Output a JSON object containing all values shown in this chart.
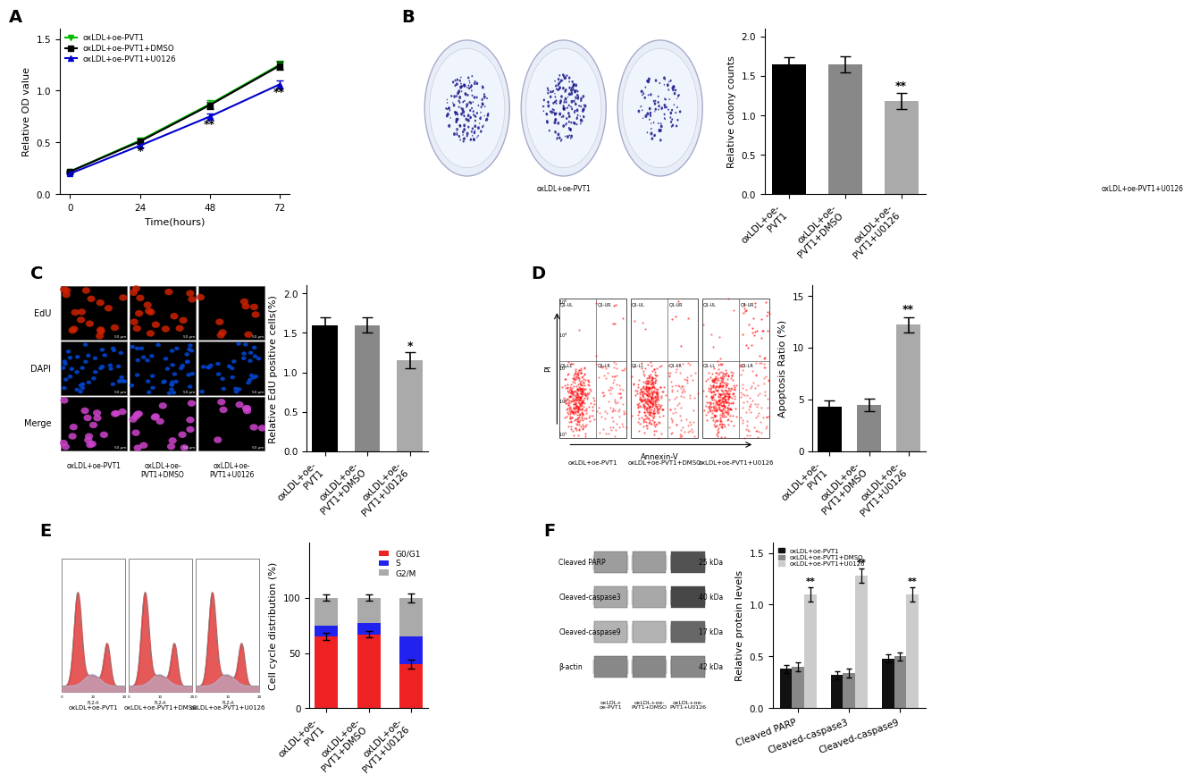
{
  "panel_A": {
    "time_points": [
      0,
      24,
      48,
      72
    ],
    "series": {
      "oxLDL+oe-PVT1": {
        "values": [
          0.22,
          0.52,
          0.87,
          1.25
        ],
        "errors": [
          0.01,
          0.025,
          0.035,
          0.04
        ],
        "color": "#00bb00",
        "marker": "v",
        "linestyle": "-"
      },
      "oxLDL+oe-PVT1+DMSO": {
        "values": [
          0.22,
          0.51,
          0.86,
          1.24
        ],
        "errors": [
          0.01,
          0.025,
          0.035,
          0.04
        ],
        "color": "#000000",
        "marker": "s",
        "linestyle": "-"
      },
      "oxLDL+oe-PVT1+U0126": {
        "values": [
          0.2,
          0.47,
          0.75,
          1.06
        ],
        "errors": [
          0.01,
          0.02,
          0.03,
          0.035
        ],
        "color": "#0000cc",
        "marker": "^",
        "linestyle": "-"
      }
    },
    "xlabel": "Time(hours)",
    "ylabel": "Relative OD value",
    "ylim": [
      0.0,
      1.6
    ],
    "yticks": [
      0.0,
      0.5,
      1.0,
      1.5
    ],
    "ann_24": "*",
    "ann_48": "**",
    "ann_72": "**"
  },
  "panel_B_bar": {
    "categories": [
      "oxLDL+oe-PVT1",
      "oxLDL+oe-PVT1+DMSO",
      "oxLDL+oe-PVT1+U0126"
    ],
    "values": [
      1.65,
      1.65,
      1.18
    ],
    "errors": [
      0.09,
      0.1,
      0.1
    ],
    "colors": [
      "#000000",
      "#888888",
      "#aaaaaa"
    ],
    "ylabel": "Relative colony counts",
    "ylim": [
      0.0,
      2.1
    ],
    "yticks": [
      0.0,
      0.5,
      1.0,
      1.5,
      2.0
    ],
    "ann_idx": 2,
    "ann_text": "**"
  },
  "panel_C_bar": {
    "categories": [
      "oxLDL+oe-PVT1",
      "oxLDL+oe-PVT1+DMSO",
      "oxLDL+oe-PVT1+U0126"
    ],
    "values": [
      1.6,
      1.6,
      1.15
    ],
    "errors": [
      0.1,
      0.1,
      0.1
    ],
    "colors": [
      "#000000",
      "#888888",
      "#aaaaaa"
    ],
    "ylabel": "Relative EdU positive cells(%)",
    "ylim": [
      0.0,
      2.1
    ],
    "yticks": [
      0.0,
      0.5,
      1.0,
      1.5,
      2.0
    ],
    "ann_idx": 2,
    "ann_text": "*"
  },
  "panel_D_bar": {
    "categories": [
      "oxLDL+oe-PVT1",
      "oxLDL+oe-PVT1+DMSO",
      "oxLDL+oe-PVT1+U0126"
    ],
    "values": [
      4.3,
      4.5,
      12.2
    ],
    "errors": [
      0.6,
      0.6,
      0.7
    ],
    "colors": [
      "#000000",
      "#888888",
      "#aaaaaa"
    ],
    "ylabel": "Apoptosis Ratio (%)",
    "ylim": [
      0,
      16
    ],
    "yticks": [
      0,
      5,
      10,
      15
    ],
    "ann_idx": 2,
    "ann_text": "**"
  },
  "panel_E_bar": {
    "categories": [
      "oxLDL+oe-PVT1",
      "oxLDL+oe-PVT1+DMSO",
      "oxLDL+oe-PVT1+U0126"
    ],
    "G0G1": [
      65,
      67,
      40
    ],
    "S": [
      10,
      10,
      25
    ],
    "G2M": [
      25,
      23,
      35
    ],
    "G0G1_err": [
      3,
      3,
      4
    ],
    "colors_cycle": {
      "G0/G1": "#ee2222",
      "S": "#2222ee",
      "G2/M": "#aaaaaa"
    },
    "ylabel": "Cell cycle distribution (%)",
    "ylim": [
      0,
      150
    ],
    "yticks": [
      0,
      50,
      100
    ]
  },
  "panel_F_bar": {
    "categories": [
      "Cleaved PARP",
      "Cleaved-caspase3",
      "Cleaved-caspase9"
    ],
    "series": {
      "oxLDL+oe-PVT1": {
        "values": [
          0.38,
          0.32,
          0.48
        ],
        "errors": [
          0.04,
          0.04,
          0.04
        ],
        "color": "#111111"
      },
      "oxLDL+oe-PVT1+DMSO": {
        "values": [
          0.4,
          0.34,
          0.5
        ],
        "errors": [
          0.04,
          0.04,
          0.04
        ],
        "color": "#888888"
      },
      "oxLDL+oe-PVT1+U0126": {
        "values": [
          1.1,
          1.28,
          1.1
        ],
        "errors": [
          0.07,
          0.07,
          0.07
        ],
        "color": "#cccccc"
      }
    },
    "ylabel": "Relative protein levels",
    "ylim": [
      0,
      1.6
    ],
    "yticks": [
      0.0,
      0.5,
      1.0,
      1.5
    ],
    "ann_text": "**"
  },
  "bg_color": "#ffffff",
  "label_fontsize": 8,
  "tick_fontsize": 7.5,
  "panel_label_fontsize": 14,
  "xticklabel_fontsize": 6.5
}
